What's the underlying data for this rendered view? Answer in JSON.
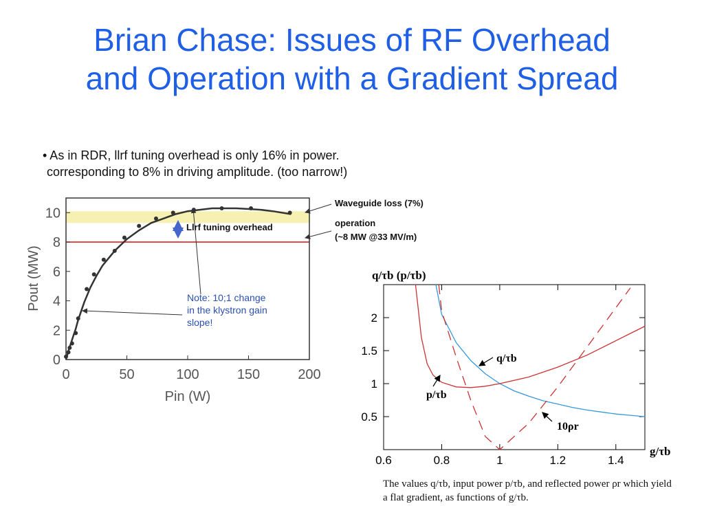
{
  "slide": {
    "title_line1": "Brian Chase: Issues of RF Overhead",
    "title_line2": "and Operation with a Gradient Spread",
    "bullet_line1": "• As in RDR, llrf tuning overhead is only 16% in power.",
    "bullet_line2": "corresponding to 8% in driving amplitude. (too narrow!)",
    "caption": "The values q/τb, input power p/τb, and reflected power ρr which yield a flat gradient, as functions of g/τb."
  },
  "colors": {
    "title": "#1f5fe6",
    "band": "#f7f0b3",
    "operation_line": "#e02020",
    "curve": "#333333",
    "note": "#2a4fb0",
    "q_curve": "#3399dd",
    "p_curve": "#cc3333"
  },
  "chart_data": [
    {
      "type": "line",
      "title": "",
      "xlabel": "Pin  (W)",
      "ylabel": "Pout  (MW)",
      "xlim": [
        0,
        200
      ],
      "ylim": [
        0,
        11
      ],
      "x_ticks": [
        0,
        50,
        100,
        150,
        200
      ],
      "y_ticks": [
        0,
        2,
        4,
        6,
        8,
        10
      ],
      "grid": false,
      "series": [
        {
          "name": "",
          "x": [
            0,
            1,
            2,
            4,
            6,
            8,
            10,
            15,
            20,
            25,
            30,
            40,
            50,
            60,
            70,
            80,
            90,
            100,
            110,
            120,
            130,
            140,
            150,
            160,
            170,
            185
          ],
          "y": [
            0,
            0.3,
            0.6,
            1.1,
            1.6,
            2.1,
            2.7,
            3.9,
            4.9,
            5.7,
            6.4,
            7.4,
            8.2,
            8.8,
            9.3,
            9.6,
            9.9,
            10.1,
            10.2,
            10.3,
            10.3,
            10.3,
            10.25,
            10.2,
            10.1,
            9.9
          ]
        }
      ],
      "markers": {
        "x": [
          0,
          2,
          3,
          5,
          8,
          10,
          17,
          23,
          31,
          40,
          48,
          60,
          74,
          88,
          105,
          128,
          152,
          184
        ],
        "y": [
          0.2,
          0.5,
          0.8,
          1.1,
          1.8,
          2.8,
          4.8,
          5.8,
          6.8,
          7.4,
          8.3,
          9.1,
          9.6,
          10.0,
          10.2,
          10.3,
          10.3,
          10.0
        ]
      },
      "band": {
        "y_range": [
          9.3,
          10.1
        ]
      },
      "hline": {
        "y": 8
      },
      "annotations": {
        "overhead": "Llrf tuning overhead",
        "waveguide": "Waveguide loss (7%)",
        "operation_line1": "operation",
        "operation_line2": "(~8 MW @33 MV/m)",
        "note_line1": "Note: 10;1 change",
        "note_line2": "in the klystron gain",
        "note_line3": "slope!"
      }
    },
    {
      "type": "line",
      "title": "q/τb (p/τb)",
      "xlabel": "g/τb",
      "ylabel": "",
      "xlim": [
        0.6,
        1.5
      ],
      "ylim": [
        0,
        2.5
      ],
      "x_ticks": [
        0.6,
        0.8,
        1,
        1.2,
        1.4
      ],
      "x_tick_labels": [
        "0.6",
        "0.8",
        "1",
        "1.2",
        "1.4"
      ],
      "y_ticks": [
        0.5,
        1,
        1.5,
        2
      ],
      "y_tick_labels": [
        "0.5",
        "1",
        "1.5",
        "2"
      ],
      "grid": false,
      "series": [
        {
          "name": "q/τb",
          "style": "solid",
          "x": [
            0.78,
            0.8,
            0.85,
            0.9,
            0.95,
            1.0,
            1.05,
            1.1,
            1.15,
            1.2,
            1.25,
            1.3,
            1.35,
            1.4,
            1.45,
            1.5
          ],
          "y": [
            2.5,
            2.05,
            1.62,
            1.35,
            1.15,
            1.0,
            0.89,
            0.81,
            0.74,
            0.69,
            0.64,
            0.6,
            0.57,
            0.54,
            0.52,
            0.5
          ]
        },
        {
          "name": "p/τb",
          "style": "solid",
          "x": [
            0.71,
            0.72,
            0.73,
            0.75,
            0.77,
            0.8,
            0.85,
            0.9,
            0.95,
            1.0,
            1.1,
            1.2,
            1.3,
            1.4,
            1.45,
            1.5
          ],
          "y": [
            2.5,
            2.1,
            1.7,
            1.3,
            1.13,
            1.02,
            0.95,
            0.94,
            0.96,
            1.0,
            1.1,
            1.25,
            1.43,
            1.65,
            1.76,
            1.87
          ]
        },
        {
          "name": "10ρr",
          "style": "dashed",
          "x": [
            0.79,
            0.8,
            0.85,
            0.9,
            0.95,
            1.0,
            1.1,
            1.2,
            1.3,
            1.4,
            1.45
          ],
          "y": [
            2.5,
            2.1,
            1.4,
            0.75,
            0.2,
            0.0,
            0.4,
            0.95,
            1.55,
            2.15,
            2.45
          ]
        }
      ],
      "labels": {
        "q": "q/τb",
        "p": "p/τb",
        "rho": "10ρr"
      }
    }
  ]
}
